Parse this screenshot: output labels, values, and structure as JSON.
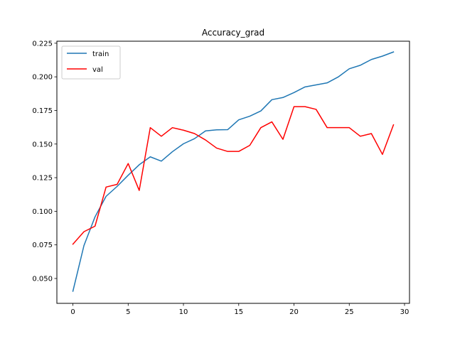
{
  "chart_data": {
    "type": "line",
    "title": "Accuracy_grad",
    "xlabel": "",
    "ylabel": "",
    "xlim": [
      -1.45,
      30.45
    ],
    "ylim": [
      0.0315,
      0.2265
    ],
    "xticks": [
      0,
      5,
      10,
      15,
      20,
      25,
      30
    ],
    "xtick_labels": [
      "0",
      "5",
      "10",
      "15",
      "20",
      "25",
      "30"
    ],
    "yticks": [
      0.05,
      0.075,
      0.1,
      0.125,
      0.15,
      0.175,
      0.2,
      0.225
    ],
    "ytick_labels": [
      "0.050",
      "0.075",
      "0.100",
      "0.125",
      "0.150",
      "0.175",
      "0.200",
      "0.225"
    ],
    "grid": false,
    "legend_position": "upper-left",
    "x": [
      0,
      1,
      2,
      3,
      4,
      5,
      6,
      7,
      8,
      9,
      10,
      11,
      12,
      13,
      14,
      15,
      16,
      17,
      18,
      19,
      20,
      21,
      22,
      23,
      24,
      25,
      26,
      27,
      28,
      29
    ],
    "series": [
      {
        "name": "train",
        "color": "#1f77b4",
        "values": [
          0.0405,
          0.0745,
          0.0958,
          0.1111,
          0.1185,
          0.1268,
          0.1346,
          0.1405,
          0.1373,
          0.1443,
          0.1502,
          0.154,
          0.1598,
          0.1606,
          0.1607,
          0.168,
          0.1707,
          0.1746,
          0.183,
          0.1846,
          0.1883,
          0.1925,
          0.194,
          0.1955,
          0.1999,
          0.206,
          0.2086,
          0.2129,
          0.2154,
          0.2185
        ]
      },
      {
        "name": "val",
        "color": "#ff0000",
        "values": [
          0.0755,
          0.0848,
          0.0889,
          0.118,
          0.12,
          0.1355,
          0.1155,
          0.1622,
          0.1558,
          0.1622,
          0.1603,
          0.1578,
          0.153,
          0.147,
          0.1445,
          0.1445,
          0.149,
          0.1622,
          0.1665,
          0.1535,
          0.1778,
          0.1778,
          0.1758,
          0.1622,
          0.1622,
          0.1622,
          0.1558,
          0.1578,
          0.1423,
          0.1643
        ]
      }
    ]
  }
}
